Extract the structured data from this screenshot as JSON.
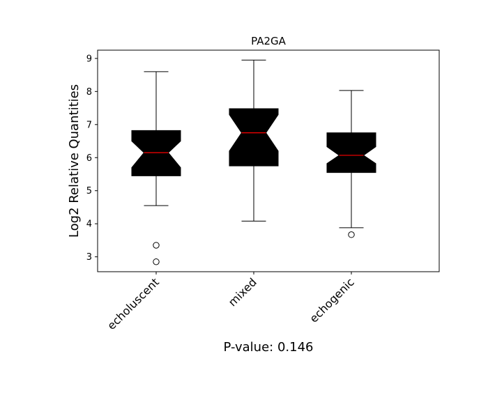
{
  "chart_data": {
    "type": "box",
    "title": "PA2GA",
    "ylabel": "Log2 Relative Quantities",
    "xlabel": "P-value: 0.146",
    "ylim": [
      2.55,
      9.25
    ],
    "yticks": [
      3,
      4,
      5,
      6,
      7,
      8,
      9
    ],
    "xlim": [
      0.4,
      3.9
    ],
    "notched": true,
    "box_color": "#000000",
    "median_color": "#ff0000",
    "categories": [
      "echoluscent",
      "mixed",
      "echogenic"
    ],
    "boxes": [
      {
        "category": "echoluscent",
        "whisker_low": 4.55,
        "q1": 5.45,
        "notch_low": 5.7,
        "median": 6.15,
        "notch_high": 6.5,
        "q3": 6.82,
        "whisker_high": 8.6,
        "outliers": [
          3.35,
          2.85
        ]
      },
      {
        "category": "mixed",
        "whisker_low": 4.08,
        "q1": 5.75,
        "notch_low": 6.2,
        "median": 6.75,
        "notch_high": 7.3,
        "q3": 7.48,
        "whisker_high": 8.95,
        "outliers": []
      },
      {
        "category": "echogenic",
        "whisker_low": 3.88,
        "q1": 5.55,
        "notch_low": 5.82,
        "median": 6.07,
        "notch_high": 6.33,
        "q3": 6.75,
        "whisker_high": 8.03,
        "outliers": [
          3.67
        ]
      }
    ]
  }
}
